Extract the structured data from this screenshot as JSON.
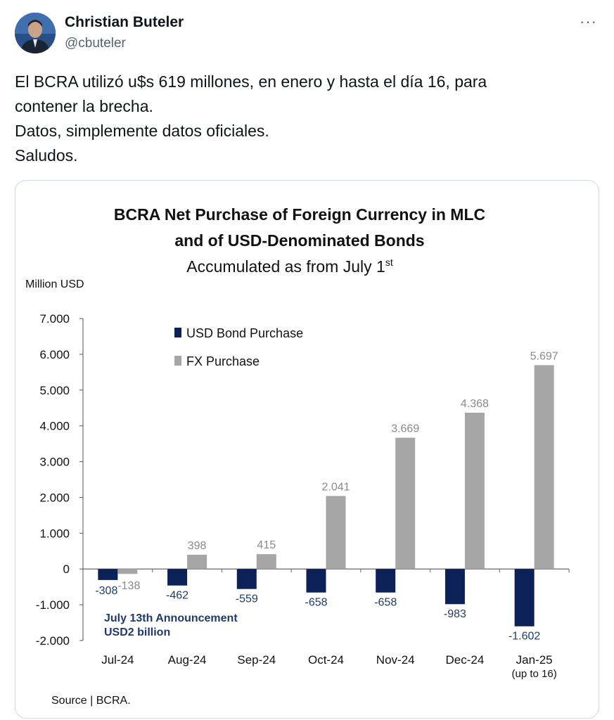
{
  "author": {
    "name": "Christian Buteler",
    "handle": "@cbuteler",
    "avatar_icon": "user-avatar-photo"
  },
  "menu": {
    "icon": "more-options-icon",
    "glyph": "···"
  },
  "tweet": {
    "lines": [
      "El BCRA utilizó u$s 619 millones, en enero y hasta el día 16, para",
      "contener la brecha.",
      "Datos, simplemente datos oficiales.",
      "Saludos."
    ]
  },
  "colors": {
    "bond": "#0d2159",
    "fx": "#a6a6a6",
    "annotation": "#1f3a6e"
  },
  "chart_data": {
    "type": "bar",
    "title_line1": "BCRA Net Purchase of Foreign Currency in MLC",
    "title_line2": "and of USD-Denominated Bonds",
    "subtitle": "Accumulated as from July 1",
    "subtitle_sup": "st",
    "ylabel": "Million USD",
    "ylim": [
      -2000,
      7000
    ],
    "yticks": [
      7000,
      6000,
      5000,
      4000,
      3000,
      2000,
      1000,
      0,
      -1000,
      -2000
    ],
    "ytick_labels": [
      "7.000",
      "6.000",
      "5.000",
      "4.000",
      "3.000",
      "2.000",
      "1.000",
      "0",
      "-1.000",
      "-2.000"
    ],
    "categories": [
      "Jul-24",
      "Aug-24",
      "Sep-24",
      "Oct-24",
      "Nov-24",
      "Dec-24",
      "Jan-25"
    ],
    "category_notes": [
      "",
      "",
      "",
      "",
      "",
      "",
      "(up to 16)"
    ],
    "series": [
      {
        "name": "USD Bond Purchase",
        "values": [
          -308,
          -462,
          -559,
          -658,
          -658,
          -983,
          -1602
        ],
        "labels": [
          "-308",
          "-462",
          "-559",
          "-658",
          "-658",
          "-983",
          "-1.602"
        ]
      },
      {
        "name": "FX Purchase",
        "values": [
          -138,
          398,
          415,
          2041,
          3669,
          4368,
          5697
        ],
        "labels": [
          "-138",
          "398",
          "415",
          "2.041",
          "3.669",
          "4.368",
          "5.697"
        ]
      }
    ],
    "annotation_line1": "July 13th Announcement",
    "annotation_line2": "USD2 billion",
    "source": "Source | BCRA."
  }
}
